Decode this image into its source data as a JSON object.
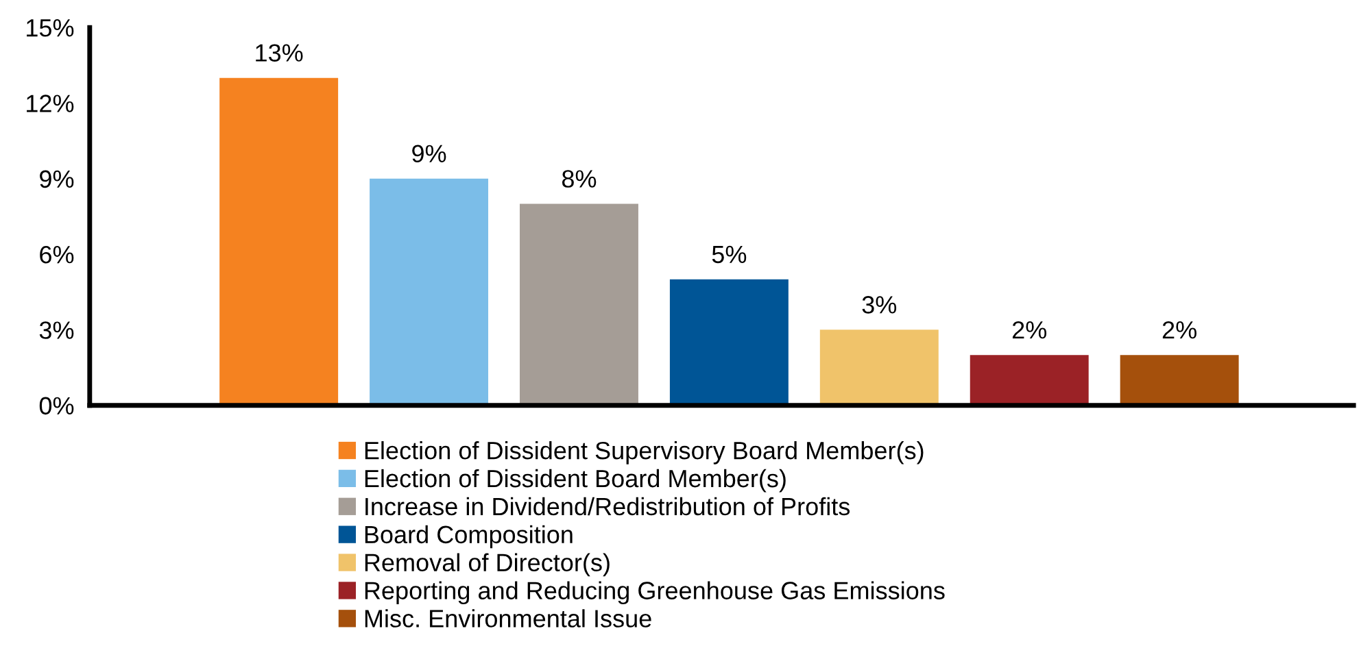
{
  "chart_data": {
    "type": "bar",
    "categories": [
      null,
      null,
      null,
      null,
      null,
      null,
      null
    ],
    "series": [
      {
        "name": "Election of Dissident Supervisory Board Member(s)",
        "color": "#f58220",
        "values": [
          13,
          null,
          null,
          null,
          null,
          null,
          null
        ]
      },
      {
        "name": "Election of Dissident Board Member(s)",
        "color": "#7bbde8",
        "values": [
          null,
          9,
          null,
          null,
          null,
          null,
          null
        ]
      },
      {
        "name": "Increase in Dividend/Redistribution of Profits",
        "color": "#a59d96",
        "values": [
          null,
          null,
          8,
          null,
          null,
          null,
          null
        ]
      },
      {
        "name": "Board Composition",
        "color": "#005596",
        "values": [
          null,
          null,
          null,
          5,
          null,
          null,
          null
        ]
      },
      {
        "name": "Removal of Director(s)",
        "color": "#f0c36a",
        "values": [
          null,
          null,
          null,
          null,
          3,
          null,
          null
        ]
      },
      {
        "name": "Reporting and Reducing Greenhouse Gas Emissions",
        "color": "#9b2226",
        "values": [
          null,
          null,
          null,
          null,
          null,
          2,
          null
        ]
      },
      {
        "name": "Misc. Environmental Issue",
        "color": "#a5500c",
        "values": [
          null,
          null,
          null,
          null,
          null,
          null,
          2
        ]
      }
    ],
    "value_labels": [
      "13%",
      "9%",
      "8%",
      "5%",
      "3%",
      "2%",
      "2%"
    ],
    "ylim": [
      0,
      15
    ],
    "yticks": [
      {
        "value": 0,
        "label": "0%"
      },
      {
        "value": 3,
        "label": "3%"
      },
      {
        "value": 6,
        "label": "6%"
      },
      {
        "value": 9,
        "label": "9%"
      },
      {
        "value": 12,
        "label": "12%"
      },
      {
        "value": 15,
        "label": "15%"
      }
    ],
    "stacked": true,
    "grid": false,
    "legend": "bottom"
  }
}
